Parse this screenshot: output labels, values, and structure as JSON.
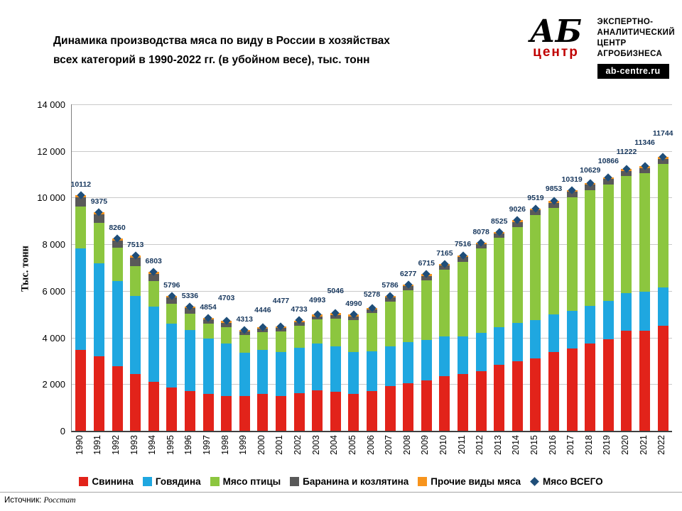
{
  "header": {
    "title_line1": "Динамика производства  мяса по виду в России в хозяйствах",
    "title_line2": "всех категорий в 1990-2022 гг. (в убойном весе), тыс. тонн"
  },
  "logo": {
    "ab": "АБ",
    "centre": "центр",
    "tagline_line1": "ЭКСПЕРТНО-",
    "tagline_line2": "АНАЛИТИЧЕСКИЙ",
    "tagline_line3": "ЦЕНТР",
    "tagline_line4": "АГРОБИЗНЕСА",
    "site": "ab-centre.ru"
  },
  "chart_data": {
    "type": "bar",
    "stacked": true,
    "title": "Динамика производства мяса по виду в России в хозяйствах всех категорий в 1990-2022 гг. (в убойном весе), тыс. тонн",
    "ylabel": "Тыс. тонн",
    "ylim": [
      0,
      14000
    ],
    "ytick_step": 2000,
    "ytick_labels": [
      "0",
      "2 000",
      "4 000",
      "6 000",
      "8 000",
      "10 000",
      "12 000",
      "14 000"
    ],
    "grid": true,
    "legend_position": "bottom",
    "categories": [
      "1990",
      "1991",
      "1992",
      "1993",
      "1994",
      "1995",
      "1996",
      "1997",
      "1998",
      "1999",
      "2000",
      "2001",
      "2002",
      "2003",
      "2004",
      "2005",
      "2006",
      "2007",
      "2008",
      "2009",
      "2010",
      "2011",
      "2012",
      "2013",
      "2014",
      "2015",
      "2016",
      "2017",
      "2018",
      "2019",
      "2020",
      "2021",
      "2022"
    ],
    "series": [
      {
        "name": "Свинина",
        "color": "#e2231a",
        "values": [
          3480,
          3190,
          2780,
          2430,
          2100,
          1865,
          1705,
          1570,
          1505,
          1485,
          1578,
          1498,
          1608,
          1743,
          1686,
          1569,
          1699,
          1930,
          2042,
          2169,
          2331,
          2428,
          2559,
          2816,
          2974,
          3099,
          3368,
          3530,
          3744,
          3937,
          4282,
          4304,
          4500
        ]
      },
      {
        "name": "Говядина",
        "color": "#1fa7e0",
        "values": [
          4330,
          3990,
          3630,
          3360,
          3240,
          2730,
          2630,
          2390,
          2250,
          1870,
          1898,
          1890,
          1957,
          2002,
          1951,
          1809,
          1722,
          1690,
          1769,
          1741,
          1727,
          1625,
          1642,
          1633,
          1654,
          1649,
          1619,
          1613,
          1608,
          1625,
          1634,
          1674,
          1650
        ]
      },
      {
        "name": "Мясо птицы",
        "color": "#8cc63f",
        "values": [
          1800,
          1750,
          1430,
          1280,
          1070,
          860,
          690,
          630,
          690,
          750,
          766,
          884,
          953,
          1030,
          1185,
          1380,
          1624,
          1925,
          2217,
          2555,
          2847,
          3204,
          3625,
          3831,
          4120,
          4500,
          4580,
          4880,
          4980,
          5014,
          5010,
          5077,
          5280
        ]
      },
      {
        "name": "Баранина и козлятина",
        "color": "#595959",
        "values": [
          395,
          345,
          330,
          360,
          315,
          260,
          230,
          200,
          180,
          145,
          140,
          133,
          136,
          132,
          145,
          154,
          156,
          168,
          174,
          183,
          185,
          189,
          190,
          190,
          204,
          204,
          213,
          220,
          225,
          215,
          215,
          215,
          230
        ]
      },
      {
        "name": "Прочие виды мяса",
        "color": "#f7941d",
        "values": [
          107,
          100,
          90,
          83,
          78,
          81,
          81,
          64,
          78,
          63,
          64,
          72,
          79,
          86,
          79,
          78,
          77,
          73,
          75,
          67,
          75,
          70,
          62,
          55,
          74,
          67,
          73,
          76,
          72,
          75,
          81,
          76,
          84
        ]
      }
    ],
    "totals": {
      "name": "Мясо ВСЕГО",
      "color": "#1f4e79",
      "values": [
        10112,
        9375,
        8260,
        7513,
        6803,
        5796,
        5336,
        4854,
        4703,
        4313,
        4446,
        4477,
        4733,
        4993,
        5046,
        4990,
        5278,
        5786,
        6277,
        6715,
        7165,
        7516,
        8078,
        8525,
        9026,
        9519,
        9853,
        10319,
        10629,
        10866,
        11222,
        11346,
        11744
      ]
    },
    "label_color": "#17375d"
  },
  "footer": {
    "source_label": "Источник:",
    "source_value": "Росстат"
  }
}
